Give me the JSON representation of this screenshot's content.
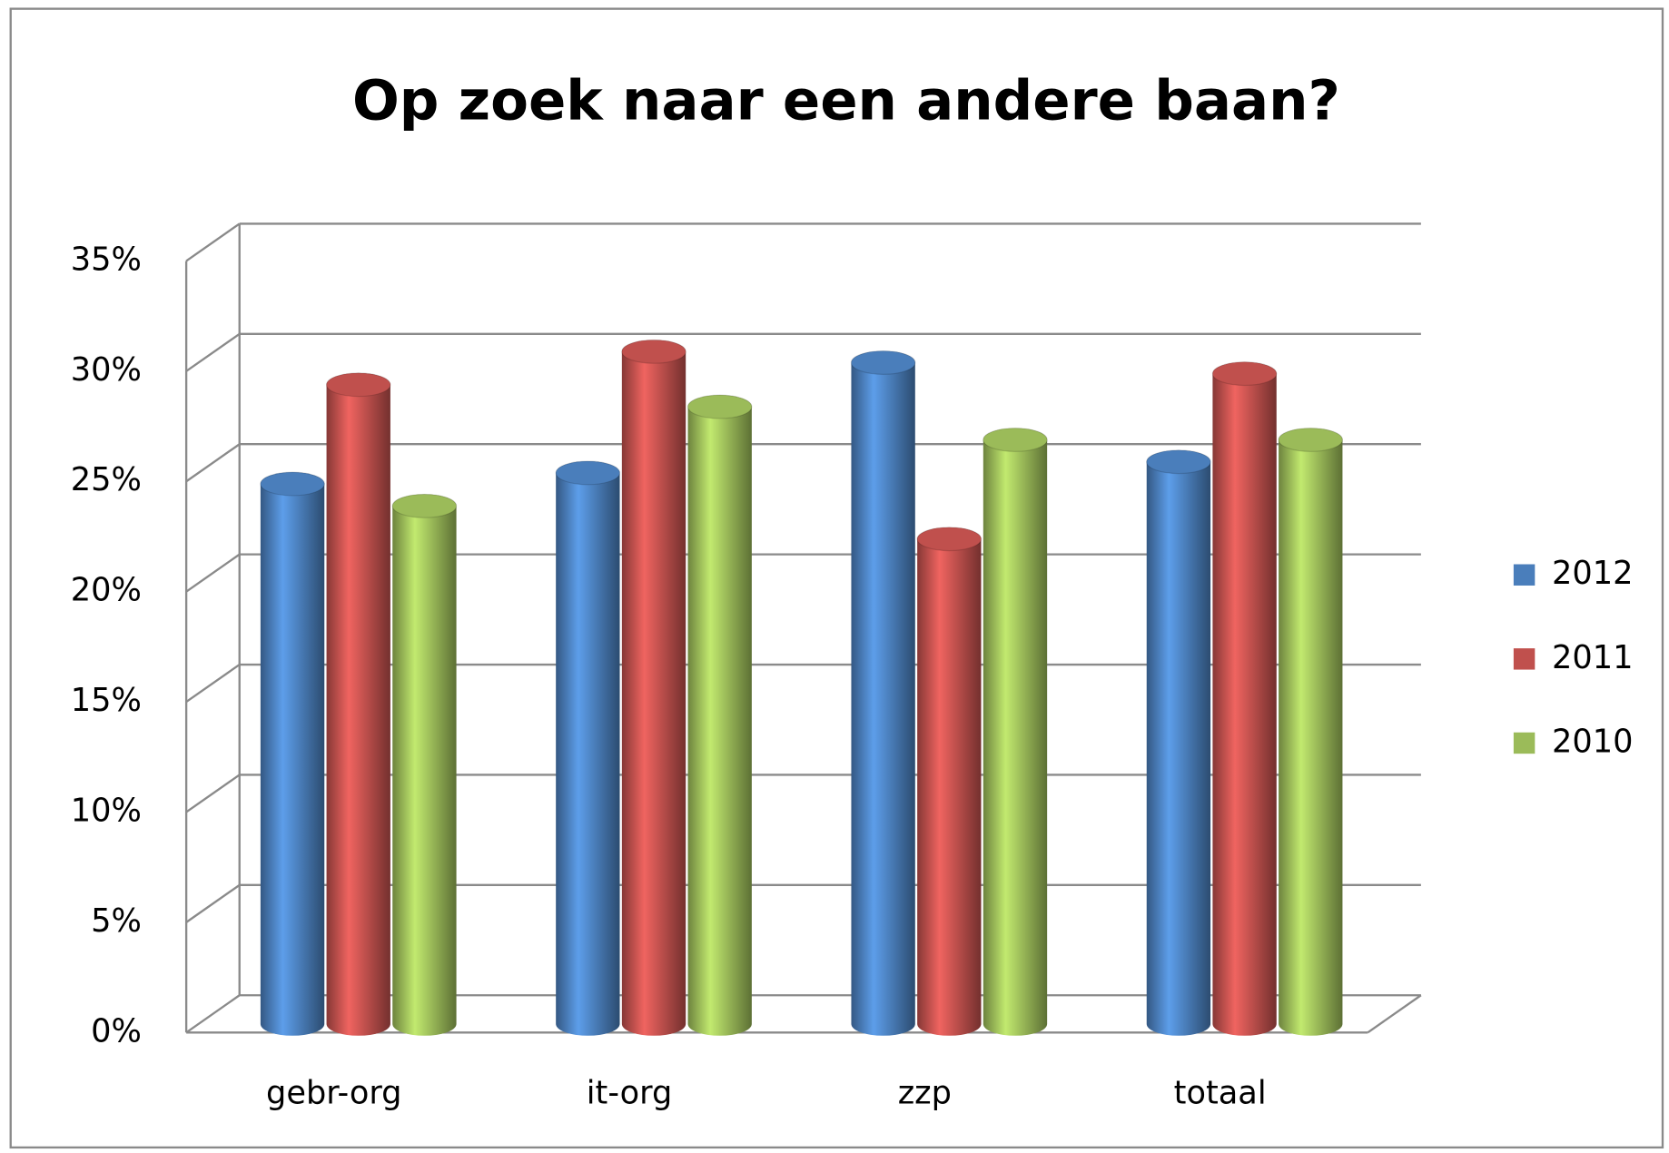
{
  "chart_data": {
    "type": "bar3d",
    "title": "Op zoek naar een andere baan?",
    "categories": [
      "gebr-org",
      "it-org",
      "zzp",
      "totaal"
    ],
    "series": [
      {
        "name": "2012",
        "color": "#4a7ebb",
        "values": [
          24.5,
          25,
          30,
          25.5
        ]
      },
      {
        "name": "2011",
        "color": "#c0504d",
        "values": [
          29,
          30.5,
          22,
          29.5
        ]
      },
      {
        "name": "2010",
        "color": "#9bbb59",
        "values": [
          23.5,
          28,
          26.5,
          26.5
        ]
      }
    ],
    "ylim": [
      0,
      35
    ],
    "yticks": [
      {
        "value": 0,
        "label": "0%"
      },
      {
        "value": 5,
        "label": "5%"
      },
      {
        "value": 10,
        "label": "10%"
      },
      {
        "value": 15,
        "label": "15%"
      },
      {
        "value": 20,
        "label": "20%"
      },
      {
        "value": 25,
        "label": "25%"
      },
      {
        "value": 30,
        "label": "30%"
      },
      {
        "value": 35,
        "label": "35%"
      }
    ],
    "grid": true,
    "legend": "right"
  }
}
